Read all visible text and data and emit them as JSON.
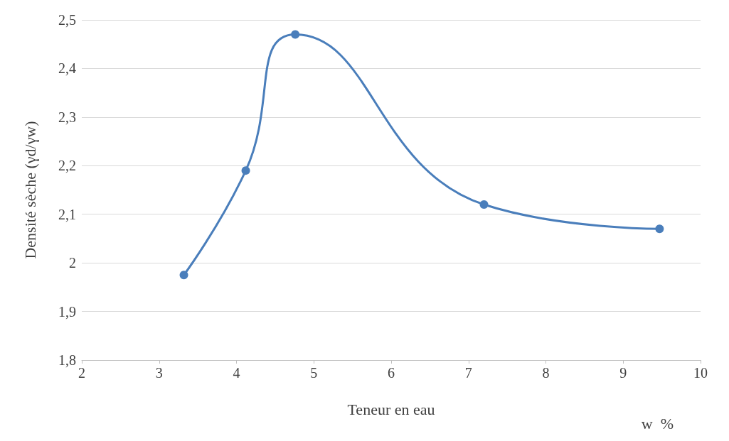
{
  "chart_data": {
    "type": "line",
    "xlabel": "Teneur en eau",
    "ylabel": "Densité sèche (γd/γw)",
    "annotations": [
      "w  %"
    ],
    "x": [
      3.32,
      4.12,
      4.76,
      7.2,
      9.47
    ],
    "series": [
      {
        "color": "#4a7ebb",
        "values": [
          1.975,
          2.19,
          2.47,
          2.12,
          2.07
        ]
      }
    ],
    "xlim": [
      2,
      10
    ],
    "xticks": [
      2,
      3,
      4,
      5,
      6,
      7,
      8,
      9,
      10
    ],
    "ylim": [
      1.8,
      2.5
    ],
    "yticks": [
      {
        "value": 1.8,
        "label": "1,8"
      },
      {
        "value": 1.9,
        "label": "1,9"
      },
      2,
      {
        "value": 2.1,
        "label": "2,1"
      },
      {
        "value": 2.2,
        "label": "2,2"
      },
      {
        "value": 2.3,
        "label": "2,3"
      },
      {
        "value": 2.4,
        "label": "2,4"
      },
      {
        "value": 2.5,
        "label": "2,5"
      }
    ],
    "grid": "y",
    "marker": "circle",
    "line_style": "solid"
  }
}
